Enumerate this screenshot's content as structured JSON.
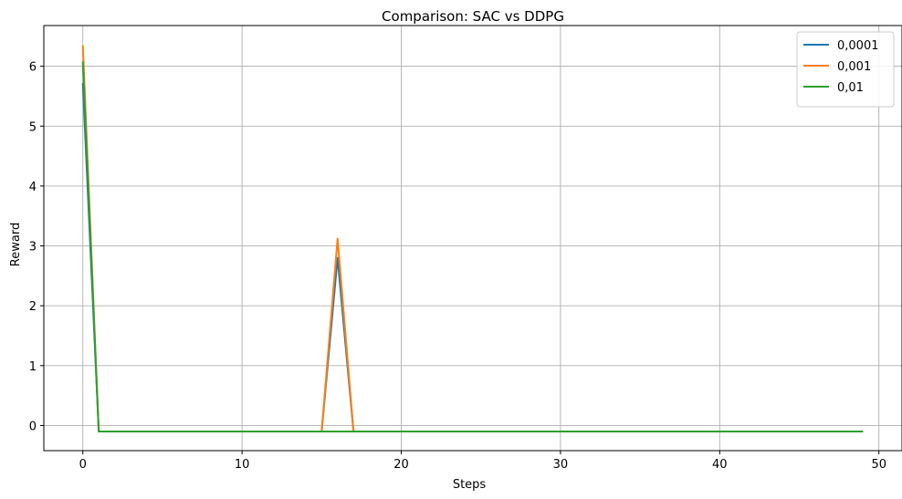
{
  "chart_data": {
    "type": "line",
    "title": "Comparison: SAC vs DDPG",
    "xlabel": "Steps",
    "ylabel": "Reward",
    "xlim": [
      -2.45,
      51.45
    ],
    "ylim": [
      -0.42,
      6.68
    ],
    "xticks": [
      0,
      10,
      20,
      30,
      40,
      50
    ],
    "yticks": [
      0,
      1,
      2,
      3,
      4,
      5,
      6
    ],
    "grid": true,
    "legend_position": "top-right",
    "series": [
      {
        "name": "0,0001",
        "color": "#1f77b4",
        "points": [
          [
            0,
            5.72
          ],
          [
            1,
            -0.1
          ],
          [
            15,
            -0.1
          ],
          [
            16,
            2.8
          ],
          [
            17,
            -0.1
          ],
          [
            49,
            -0.1
          ]
        ]
      },
      {
        "name": "0,001",
        "color": "#ff7f0e",
        "points": [
          [
            0,
            6.35
          ],
          [
            1,
            -0.1
          ],
          [
            15,
            -0.1
          ],
          [
            16,
            3.12
          ],
          [
            17,
            -0.1
          ],
          [
            49,
            -0.1
          ]
        ]
      },
      {
        "name": "0,01",
        "color": "#2ca02c",
        "points": [
          [
            0,
            6.08
          ],
          [
            1,
            -0.1
          ],
          [
            49,
            -0.1
          ]
        ]
      }
    ]
  }
}
